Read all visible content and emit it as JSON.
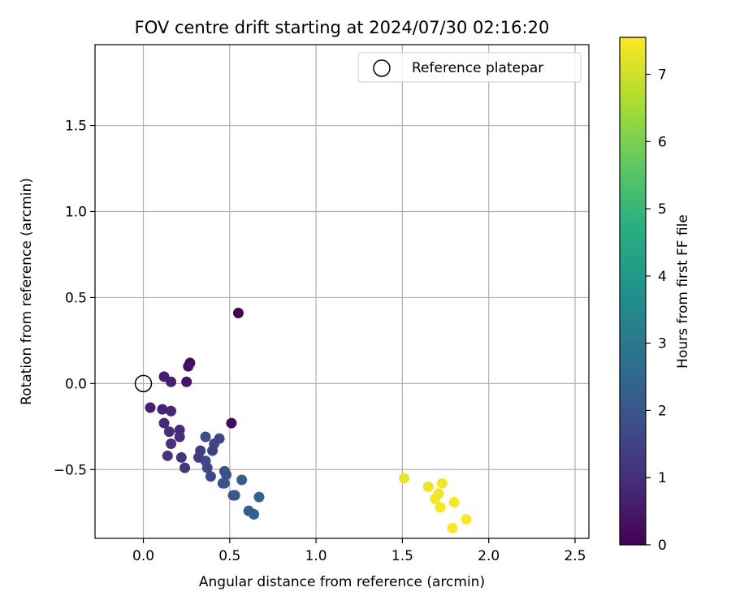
{
  "chart_data": {
    "type": "scatter",
    "title": "FOV centre drift starting at 2024/07/30 02:16:20",
    "xlabel": "Angular distance from reference (arcmin)",
    "ylabel": "Rotation from reference (arcmin)",
    "xlim": [
      -0.28,
      2.58
    ],
    "ylim": [
      -0.9,
      1.97
    ],
    "x_ticks": [
      0.0,
      0.5,
      1.0,
      1.5,
      2.0,
      2.5
    ],
    "x_tick_labels": [
      "0.0",
      "0.5",
      "1.0",
      "1.5",
      "2.0",
      "2.5"
    ],
    "y_ticks": [
      -0.5,
      0.0,
      0.5,
      1.0,
      1.5
    ],
    "y_tick_labels": [
      "−0.5",
      "0.0",
      "0.5",
      "1.0",
      "1.5"
    ],
    "grid": true,
    "legend": {
      "placement": "top-right",
      "entries": [
        "Reference platepar"
      ]
    },
    "reference_point": {
      "x": 0.0,
      "y": 0.0,
      "label": "Reference platepar"
    },
    "colorbar": {
      "label": "Hours from first FF file",
      "colormap": "viridis",
      "range": [
        0,
        7.55
      ],
      "ticks": [
        0,
        1,
        2,
        3,
        4,
        5,
        6,
        7
      ],
      "tick_labels": [
        "0",
        "1",
        "2",
        "3",
        "4",
        "5",
        "6",
        "7"
      ]
    },
    "points": [
      {
        "x": 0.55,
        "y": 0.41,
        "h": 0.05
      },
      {
        "x": 0.27,
        "y": 0.12,
        "h": 0.3
      },
      {
        "x": 0.26,
        "y": 0.1,
        "h": 0.35
      },
      {
        "x": 0.25,
        "y": 0.01,
        "h": 0.4
      },
      {
        "x": 0.51,
        "y": -0.23,
        "h": 0.2
      },
      {
        "x": 0.12,
        "y": 0.04,
        "h": 0.6
      },
      {
        "x": 0.16,
        "y": 0.01,
        "h": 0.65
      },
      {
        "x": 0.04,
        "y": -0.14,
        "h": 0.7
      },
      {
        "x": 0.11,
        "y": -0.15,
        "h": 0.75
      },
      {
        "x": 0.16,
        "y": -0.16,
        "h": 0.8
      },
      {
        "x": 0.12,
        "y": -0.23,
        "h": 0.85
      },
      {
        "x": 0.21,
        "y": -0.27,
        "h": 0.9
      },
      {
        "x": 0.15,
        "y": -0.28,
        "h": 0.95
      },
      {
        "x": 0.21,
        "y": -0.31,
        "h": 1.0
      },
      {
        "x": 0.16,
        "y": -0.35,
        "h": 1.05
      },
      {
        "x": 0.14,
        "y": -0.42,
        "h": 1.1
      },
      {
        "x": 0.22,
        "y": -0.43,
        "h": 1.15
      },
      {
        "x": 0.24,
        "y": -0.49,
        "h": 1.2
      },
      {
        "x": 0.32,
        "y": -0.43,
        "h": 1.3
      },
      {
        "x": 0.33,
        "y": -0.39,
        "h": 1.35
      },
      {
        "x": 0.4,
        "y": -0.39,
        "h": 1.4
      },
      {
        "x": 0.41,
        "y": -0.35,
        "h": 1.45
      },
      {
        "x": 0.44,
        "y": -0.32,
        "h": 1.5
      },
      {
        "x": 0.36,
        "y": -0.45,
        "h": 1.55
      },
      {
        "x": 0.37,
        "y": -0.49,
        "h": 1.6
      },
      {
        "x": 0.39,
        "y": -0.54,
        "h": 1.65
      },
      {
        "x": 0.36,
        "y": -0.31,
        "h": 1.75
      },
      {
        "x": 0.47,
        "y": -0.51,
        "h": 1.8
      },
      {
        "x": 0.48,
        "y": -0.53,
        "h": 1.85
      },
      {
        "x": 0.47,
        "y": -0.58,
        "h": 1.9
      },
      {
        "x": 0.46,
        "y": -0.58,
        "h": 1.95
      },
      {
        "x": 0.52,
        "y": -0.65,
        "h": 2.05
      },
      {
        "x": 0.53,
        "y": -0.65,
        "h": 2.1
      },
      {
        "x": 0.57,
        "y": -0.56,
        "h": 2.2
      },
      {
        "x": 0.61,
        "y": -0.74,
        "h": 2.25
      },
      {
        "x": 0.64,
        "y": -0.76,
        "h": 2.3
      },
      {
        "x": 0.67,
        "y": -0.66,
        "h": 2.4
      },
      {
        "x": 1.51,
        "y": -0.55,
        "h": 7.3
      },
      {
        "x": 1.65,
        "y": -0.6,
        "h": 7.35
      },
      {
        "x": 1.69,
        "y": -0.67,
        "h": 7.4
      },
      {
        "x": 1.71,
        "y": -0.64,
        "h": 7.4
      },
      {
        "x": 1.72,
        "y": -0.72,
        "h": 7.45
      },
      {
        "x": 1.73,
        "y": -0.58,
        "h": 7.45
      },
      {
        "x": 1.8,
        "y": -0.69,
        "h": 7.5
      },
      {
        "x": 1.79,
        "y": -0.84,
        "h": 7.5
      },
      {
        "x": 1.87,
        "y": -0.79,
        "h": 7.55
      }
    ]
  }
}
